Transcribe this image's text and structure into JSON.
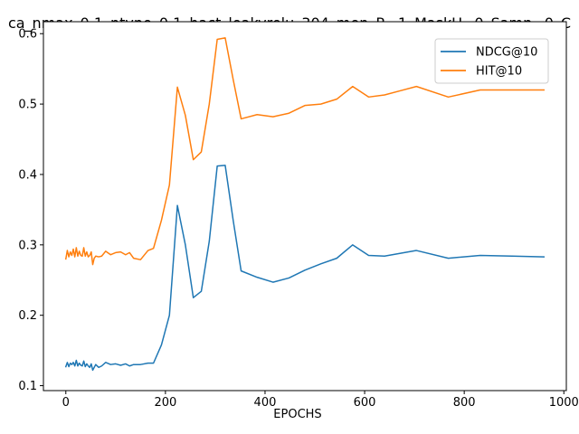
{
  "chart_data": {
    "type": "line",
    "title": "ca_nmax_0.1_ntype_0.1_hact_leakyrelu_304_men_R=1_MaskU=0_Samp=0_C",
    "xlabel": "EPOCHS",
    "ylabel": "",
    "xlim": [
      -45,
      1005
    ],
    "ylim": [
      0.093,
      0.617
    ],
    "xticks": [
      0,
      200,
      400,
      600,
      800,
      1000
    ],
    "yticks": [
      0.1,
      0.2,
      0.3,
      0.4,
      0.5,
      0.6
    ],
    "xtick_labels": [
      "0",
      "200",
      "400",
      "600",
      "800",
      "1000"
    ],
    "ytick_labels": [
      "0.1",
      "0.2",
      "0.3",
      "0.4",
      "0.5",
      "0.6"
    ],
    "grid": false,
    "legend_position": "top-right",
    "series": [
      {
        "name": "NDCG@10",
        "color": "#1f77b4",
        "x": [
          0,
          3,
          6,
          9,
          12,
          15,
          18,
          21,
          24,
          27,
          30,
          33,
          36,
          39,
          42,
          45,
          48,
          51,
          54,
          57,
          60,
          66,
          72,
          80,
          90,
          100,
          110,
          120,
          128,
          136,
          150,
          165,
          176,
          192,
          208,
          224,
          240,
          256,
          272,
          288,
          304,
          320,
          336,
          352,
          384,
          416,
          448,
          480,
          512,
          544,
          576,
          608,
          640,
          672,
          704,
          768,
          832,
          896,
          960
        ],
        "y": [
          0.127,
          0.133,
          0.127,
          0.132,
          0.13,
          0.133,
          0.128,
          0.136,
          0.128,
          0.132,
          0.129,
          0.128,
          0.135,
          0.127,
          0.131,
          0.128,
          0.126,
          0.131,
          0.122,
          0.126,
          0.13,
          0.126,
          0.128,
          0.133,
          0.13,
          0.131,
          0.129,
          0.131,
          0.128,
          0.13,
          0.13,
          0.132,
          0.132,
          0.158,
          0.2,
          0.356,
          0.3,
          0.225,
          0.234,
          0.305,
          0.412,
          0.413,
          0.335,
          0.263,
          0.254,
          0.247,
          0.253,
          0.264,
          0.273,
          0.281,
          0.3,
          0.285,
          0.284,
          0.288,
          0.292,
          0.281,
          0.285,
          0.284,
          0.283
        ]
      },
      {
        "name": "HIT@10",
        "color": "#ff7f0e",
        "x": [
          0,
          3,
          6,
          9,
          12,
          15,
          18,
          21,
          24,
          27,
          30,
          33,
          36,
          39,
          42,
          45,
          48,
          51,
          54,
          57,
          60,
          66,
          72,
          80,
          90,
          100,
          110,
          120,
          128,
          136,
          150,
          165,
          176,
          192,
          208,
          224,
          240,
          256,
          272,
          288,
          304,
          320,
          336,
          352,
          384,
          416,
          448,
          480,
          512,
          544,
          576,
          608,
          640,
          672,
          704,
          768,
          832,
          896,
          960
        ],
        "y": [
          0.28,
          0.292,
          0.283,
          0.29,
          0.285,
          0.294,
          0.283,
          0.296,
          0.284,
          0.291,
          0.285,
          0.284,
          0.296,
          0.284,
          0.29,
          0.283,
          0.285,
          0.29,
          0.272,
          0.281,
          0.284,
          0.283,
          0.284,
          0.291,
          0.286,
          0.289,
          0.29,
          0.286,
          0.289,
          0.281,
          0.279,
          0.292,
          0.295,
          0.335,
          0.385,
          0.524,
          0.484,
          0.421,
          0.432,
          0.5,
          0.592,
          0.594,
          0.535,
          0.479,
          0.485,
          0.482,
          0.487,
          0.498,
          0.5,
          0.507,
          0.525,
          0.51,
          0.513,
          0.519,
          0.525,
          0.51,
          0.52,
          0.52,
          0.52
        ]
      }
    ]
  }
}
